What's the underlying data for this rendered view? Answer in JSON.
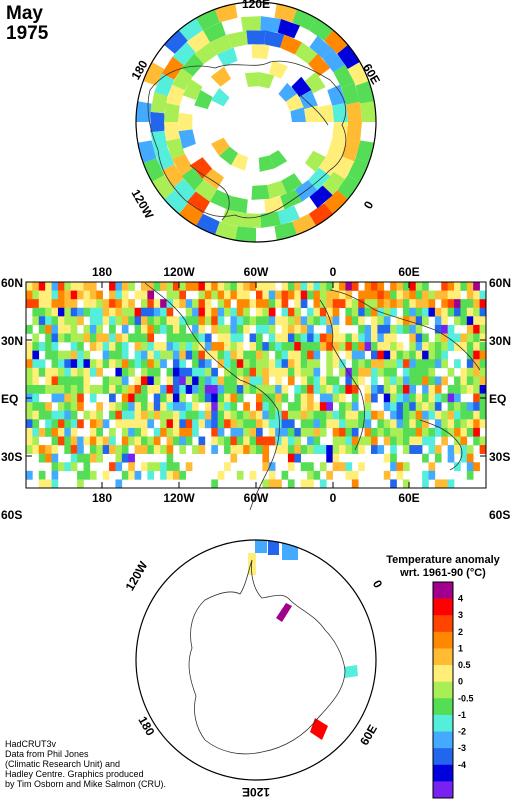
{
  "title": {
    "month": "May",
    "year": "1975"
  },
  "legend": {
    "title_line1": "Temperature anomaly",
    "title_line2": "wrt. 1961-90  (°C)",
    "colors": [
      "#a0008c",
      "#ff0000",
      "#ff4400",
      "#ff8800",
      "#ffbb33",
      "#ffee77",
      "#aaee55",
      "#55dd55",
      "#55eedd",
      "#44aaff",
      "#2266ee",
      "#0000dd",
      "#7722ee"
    ],
    "labels": [
      "4",
      "3",
      "2",
      "1",
      "0.5",
      "0",
      "-0.5",
      "-1",
      "-2",
      "-3",
      "-4"
    ]
  },
  "map_labels": {
    "lon_top": [
      "180",
      "120W",
      "60W",
      "0",
      "60E"
    ],
    "lon_bottom": [
      "180",
      "120W",
      "60W",
      "0",
      "60E"
    ],
    "lat_left": [
      "60N",
      "30N",
      "EQ",
      "30S",
      "60S"
    ],
    "lat_right": [
      "60N",
      "30N",
      "EQ",
      "30S",
      "60S"
    ],
    "north_polar": [
      "120E",
      "60E",
      "0",
      "120W",
      "180"
    ],
    "south_polar": [
      "120W",
      "0",
      "60E",
      "180",
      "120E"
    ]
  },
  "credits": [
    "HadCRUT3v",
    "Data from Phil Jones",
    "(Climatic Research Unit) and",
    "Hadley Centre.  Graphics produced",
    "by Tim Osborn and Mike Salmon (CRU)."
  ]
}
